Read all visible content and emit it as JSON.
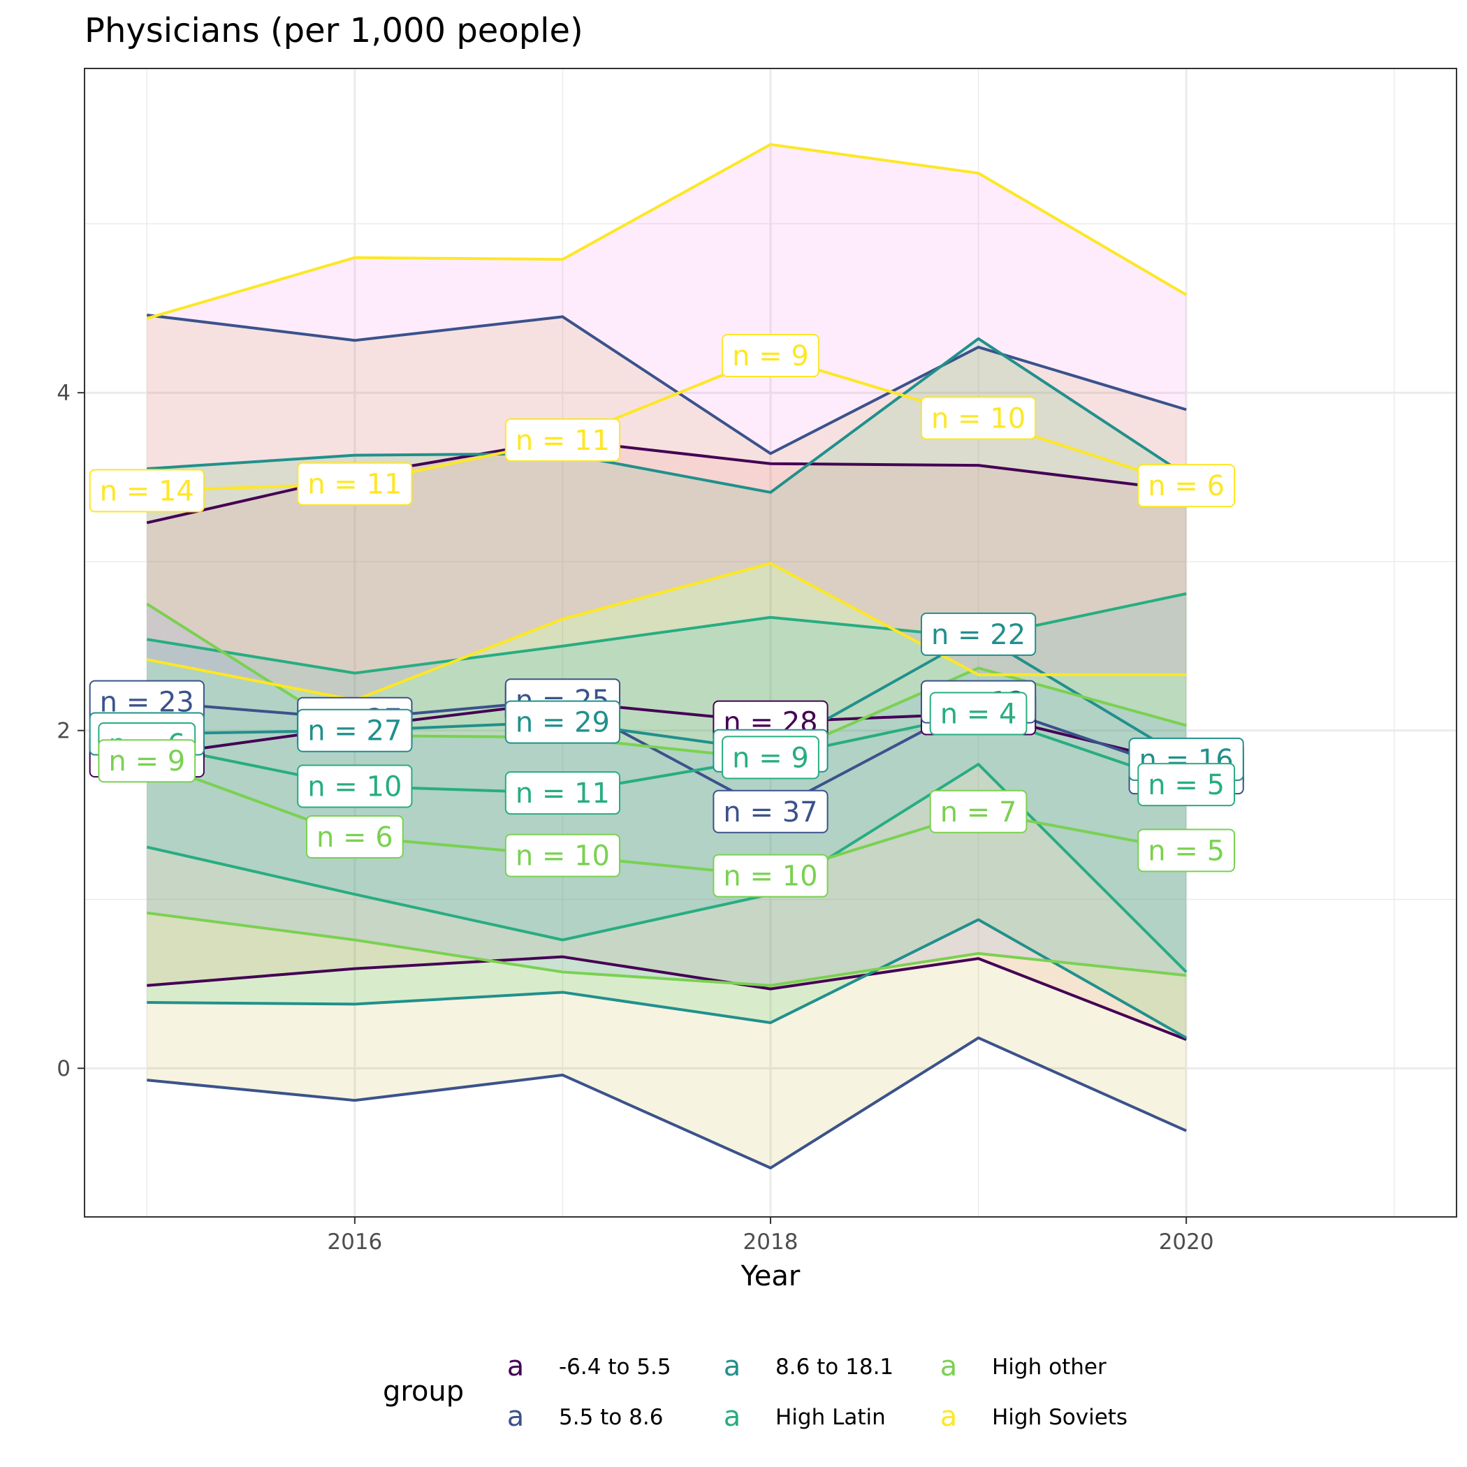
{
  "chart_data": {
    "type": "line",
    "title": "Physicians (per 1,000 people)",
    "xlabel": "Year",
    "ylabel": "",
    "xlim": [
      2014.7,
      2021.3
    ],
    "ylim": [
      -0.88,
      5.92
    ],
    "x_ticks": [
      "2016",
      "2018",
      "2020"
    ],
    "y_ticks": [
      "0",
      "2",
      "4"
    ],
    "grid": true,
    "legend": {
      "title": "group",
      "placement": "bottom",
      "key_glyph": "a",
      "entries": [
        "-6.4 to 5.5",
        "5.5 to 8.6",
        "8.6 to 18.1",
        "High Latin",
        "High other",
        "High Soviets"
      ]
    },
    "x": [
      2015,
      2016,
      2017,
      2018,
      2019,
      2020
    ],
    "series": [
      {
        "name": "-6.4 to 5.5",
        "color": "#440154",
        "fill": "#F8766D",
        "mean": [
          1.85,
          2.02,
          2.17,
          2.05,
          2.1,
          1.8
        ],
        "upper": [
          3.23,
          3.51,
          3.72,
          3.58,
          3.57,
          3.42
        ],
        "lower": [
          0.49,
          0.59,
          0.66,
          0.47,
          0.65,
          0.17
        ],
        "labels": [
          "n = 14",
          "n = 18",
          "n = 23",
          "n = 28",
          "n = 10",
          "n = 13"
        ]
      },
      {
        "name": "5.5 to 8.6",
        "color": "#3B528B",
        "fill": "#B79F00",
        "mean": [
          2.17,
          2.07,
          2.18,
          1.52,
          2.17,
          1.75
        ],
        "upper": [
          4.46,
          4.31,
          4.45,
          3.64,
          4.27,
          3.9
        ],
        "lower": [
          -0.07,
          -0.19,
          -0.04,
          -0.59,
          0.18,
          -0.37
        ],
        "labels": [
          "n = 23",
          "n = 27",
          "n = 25",
          "n = 37",
          "n = 12",
          "n = 17"
        ]
      },
      {
        "name": "8.6 to 18.1",
        "color": "#21908C",
        "fill": "#00BA38",
        "mean": [
          1.98,
          2.0,
          2.05,
          1.88,
          2.57,
          1.83
        ],
        "upper": [
          3.55,
          3.63,
          3.64,
          3.41,
          4.32,
          3.51
        ],
        "lower": [
          0.39,
          0.38,
          0.45,
          0.27,
          0.88,
          0.18
        ],
        "labels": [
          "n = 20",
          "n = 27",
          "n = 29",
          "n = 33",
          "n = 22",
          "n = 16"
        ]
      },
      {
        "name": "High Latin",
        "color": "#27AD81",
        "fill": "#00BFC4",
        "mean": [
          1.92,
          1.67,
          1.63,
          1.84,
          2.1,
          1.68
        ],
        "upper": [
          2.54,
          2.34,
          2.5,
          2.67,
          2.55,
          2.81
        ],
        "lower": [
          1.31,
          1.03,
          0.76,
          1.03,
          1.8,
          0.57
        ],
        "labels": [
          "n = 6",
          "n = 10",
          "n = 11",
          "n = 9",
          "n = 4",
          "n = 5"
        ]
      },
      {
        "name": "High other",
        "color": "#7AD151",
        "fill": "#619CFF",
        "mean": [
          1.82,
          1.37,
          1.26,
          1.14,
          1.52,
          1.29
        ],
        "upper": [
          2.75,
          1.97,
          1.96,
          1.83,
          2.37,
          2.03
        ],
        "lower": [
          0.92,
          0.76,
          0.57,
          0.49,
          0.68,
          0.55
        ],
        "labels": [
          "n = 9",
          "n = 6",
          "n = 10",
          "n = 10",
          "n = 7",
          "n = 5"
        ]
      },
      {
        "name": "High Soviets",
        "color": "#FDE725",
        "fill": "#F564E3",
        "mean": [
          3.42,
          3.46,
          3.72,
          4.22,
          3.85,
          3.45
        ],
        "upper": [
          4.44,
          4.8,
          4.79,
          5.47,
          5.3,
          4.58
        ],
        "lower": [
          2.42,
          2.18,
          2.66,
          2.99,
          2.33,
          2.33
        ],
        "labels": [
          "n = 14",
          "n = 11",
          "n = 11",
          "n = 9",
          "n = 10",
          "n = 6"
        ]
      }
    ]
  }
}
